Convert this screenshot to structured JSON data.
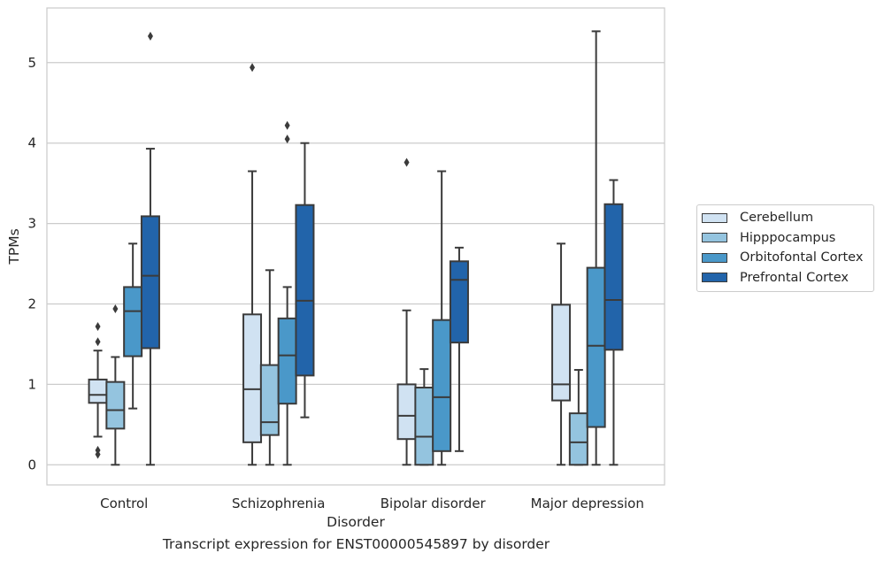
{
  "caption": "Transcript expression for ENST00000545897 by disorder",
  "chart_data": {
    "type": "boxplot",
    "xlabel": "Disorder",
    "ylabel": "TPMs",
    "ylim": [
      -0.25,
      5.68
    ],
    "yticks": [
      0,
      1,
      2,
      3,
      4,
      5
    ],
    "grid": true,
    "legend_position": "right",
    "categories": [
      "Control",
      "Schizophrenia",
      "Bipolar disorder",
      "Major depression"
    ],
    "series": [
      {
        "name": "Cerebellum",
        "color": "#d0e2f2",
        "boxes": [
          {
            "whisker_low": 0.35,
            "q1": 0.77,
            "median": 0.87,
            "q3": 1.06,
            "whisker_high": 1.42,
            "outliers": [
              0.13,
              0.18,
              1.53,
              1.72
            ]
          },
          {
            "whisker_low": 0.0,
            "q1": 0.28,
            "median": 0.94,
            "q3": 1.87,
            "whisker_high": 3.65,
            "outliers": [
              4.94
            ]
          },
          {
            "whisker_low": 0.0,
            "q1": 0.32,
            "median": 0.61,
            "q3": 1.0,
            "whisker_high": 1.92,
            "outliers": [
              3.76
            ]
          },
          {
            "whisker_low": 0.0,
            "q1": 0.8,
            "median": 1.0,
            "q3": 1.99,
            "whisker_high": 2.75,
            "outliers": []
          }
        ]
      },
      {
        "name": "Hipppocampus",
        "color": "#94c4df",
        "boxes": [
          {
            "whisker_low": 0.0,
            "q1": 0.45,
            "median": 0.68,
            "q3": 1.03,
            "whisker_high": 1.34,
            "outliers": [
              1.94
            ]
          },
          {
            "whisker_low": 0.0,
            "q1": 0.37,
            "median": 0.53,
            "q3": 1.24,
            "whisker_high": 2.42,
            "outliers": []
          },
          {
            "whisker_low": 0.0,
            "q1": 0.0,
            "median": 0.35,
            "q3": 0.96,
            "whisker_high": 1.19,
            "outliers": []
          },
          {
            "whisker_low": 0.0,
            "q1": 0.0,
            "median": 0.28,
            "q3": 0.64,
            "whisker_high": 1.18,
            "outliers": []
          }
        ]
      },
      {
        "name": "Orbitofontal Cortex",
        "color": "#4a98c9",
        "boxes": [
          {
            "whisker_low": 0.7,
            "q1": 1.35,
            "median": 1.91,
            "q3": 2.21,
            "whisker_high": 2.75,
            "outliers": []
          },
          {
            "whisker_low": 0.0,
            "q1": 0.76,
            "median": 1.36,
            "q3": 1.82,
            "whisker_high": 2.21,
            "outliers": [
              4.05,
              4.22
            ]
          },
          {
            "whisker_low": 0.0,
            "q1": 0.17,
            "median": 0.84,
            "q3": 1.8,
            "whisker_high": 3.65,
            "outliers": []
          },
          {
            "whisker_low": 0.0,
            "q1": 0.47,
            "median": 1.48,
            "q3": 2.45,
            "whisker_high": 5.39,
            "outliers": []
          }
        ]
      },
      {
        "name": "Prefrontal Cortex",
        "color": "#2264aa",
        "boxes": [
          {
            "whisker_low": 0.0,
            "q1": 1.45,
            "median": 2.35,
            "q3": 3.09,
            "whisker_high": 3.93,
            "outliers": [
              5.33
            ]
          },
          {
            "whisker_low": 0.59,
            "q1": 1.11,
            "median": 2.04,
            "q3": 3.23,
            "whisker_high": 4.0,
            "outliers": []
          },
          {
            "whisker_low": 0.17,
            "q1": 1.52,
            "median": 2.3,
            "q3": 2.53,
            "whisker_high": 2.7,
            "outliers": []
          },
          {
            "whisker_low": 0.0,
            "q1": 1.43,
            "median": 2.05,
            "q3": 3.24,
            "whisker_high": 3.54,
            "outliers": []
          }
        ]
      }
    ]
  }
}
